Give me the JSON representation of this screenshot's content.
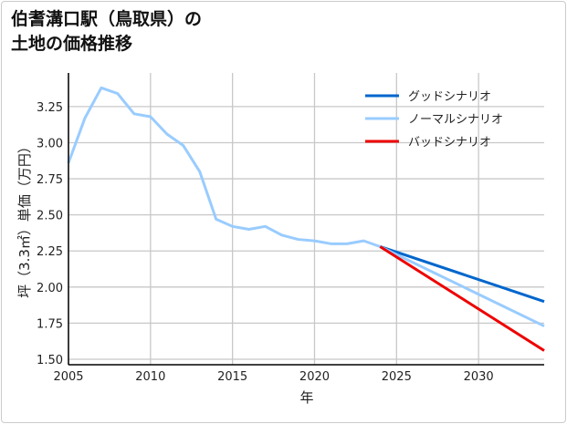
{
  "chart_data": {
    "type": "line",
    "title_lines": [
      "伯耆溝口駅（鳥取県）の",
      "土地の価格推移"
    ],
    "xlabel": "年",
    "ylabel": "坪（3.3㎡）単価（万円）",
    "xlim": [
      2005,
      2034
    ],
    "ylim": [
      1.462,
      3.483
    ],
    "xticks": [
      2005,
      2010,
      2015,
      2020,
      2025,
      2030
    ],
    "yticks": [
      1.5,
      1.75,
      2.0,
      2.25,
      2.5,
      2.75,
      3.0,
      3.25
    ],
    "ytick_labels": [
      "1.50",
      "1.75",
      "2.00",
      "2.25",
      "2.50",
      "2.75",
      "3.00",
      "3.25"
    ],
    "grid": true,
    "legend_position": "top-right",
    "history": {
      "color": "#99ccff",
      "x": [
        2005,
        2006,
        2007,
        2008,
        2009,
        2010,
        2011,
        2012,
        2013,
        2014,
        2015,
        2016,
        2017,
        2018,
        2019,
        2020,
        2021,
        2022,
        2023,
        2024
      ],
      "y": [
        2.86,
        3.17,
        3.38,
        3.34,
        3.2,
        3.18,
        3.06,
        2.98,
        2.8,
        2.47,
        2.42,
        2.4,
        2.42,
        2.36,
        2.33,
        2.32,
        2.3,
        2.3,
        2.32,
        2.28
      ]
    },
    "series": [
      {
        "name": "グッドシナリオ",
        "color": "#0066cc",
        "x": [
          2024,
          2034
        ],
        "y": [
          2.28,
          1.9
        ]
      },
      {
        "name": "ノーマルシナリオ",
        "color": "#99ccff",
        "x": [
          2024,
          2034
        ],
        "y": [
          2.28,
          1.73
        ]
      },
      {
        "name": "バッドシナリオ",
        "color": "#ee0000",
        "x": [
          2024,
          2034
        ],
        "y": [
          2.28,
          1.56
        ]
      }
    ]
  }
}
